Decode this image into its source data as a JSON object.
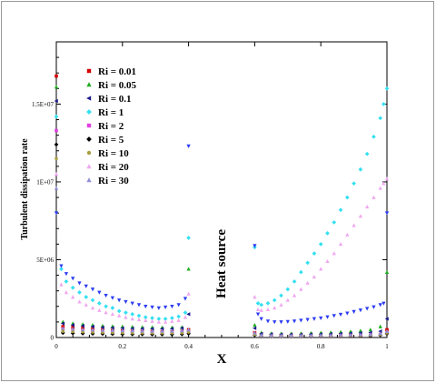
{
  "chart_data": {
    "type": "scatter",
    "title": "",
    "xlabel": "X",
    "ylabel": "Turbulent dissipation rate",
    "xlim": [
      0,
      1
    ],
    "ylim": [
      0,
      19000000
    ],
    "xticks": [
      0,
      0.2,
      0.4,
      0.6,
      0.8,
      1
    ],
    "xtick_labels": [
      "0",
      "0.2",
      "0.4",
      "0.6",
      "0.8",
      "1"
    ],
    "yticks": [
      0,
      5000000,
      10000000,
      15000000
    ],
    "ytick_labels": [
      "0",
      "5E+06",
      "1E+07",
      "1.5E+07"
    ],
    "annotation": "Heat source",
    "grid": false,
    "legend_position": "top-left",
    "series": [
      {
        "name": "Ri = 0.01",
        "color": "#d40000",
        "marker": "square",
        "x": [
          0.0,
          0.02,
          0.05,
          0.08,
          0.11,
          0.14,
          0.17,
          0.2,
          0.23,
          0.26,
          0.29,
          0.32,
          0.35,
          0.38,
          0.4,
          0.6,
          0.62,
          0.65,
          0.68,
          0.71,
          0.74,
          0.77,
          0.8,
          0.83,
          0.86,
          0.89,
          0.92,
          0.95,
          0.98,
          1.0
        ],
        "y": [
          16800000,
          700000,
          650000,
          600000,
          550000,
          500000,
          450000,
          430000,
          410000,
          400000,
          390000,
          380000,
          380000,
          400000,
          500000,
          300000,
          150000,
          130000,
          120000,
          110000,
          100000,
          100000,
          100000,
          100000,
          110000,
          120000,
          130000,
          150000,
          200000,
          500000
        ]
      },
      {
        "name": "Ri = 0.05",
        "color": "#1fae1f",
        "marker": "triangle-up",
        "x": [
          0.0,
          0.02,
          0.05,
          0.08,
          0.11,
          0.14,
          0.17,
          0.2,
          0.23,
          0.26,
          0.29,
          0.32,
          0.35,
          0.38,
          0.4,
          0.6,
          0.62,
          0.65,
          0.68,
          0.71,
          0.74,
          0.77,
          0.8,
          0.83,
          0.86,
          0.89,
          0.92,
          0.95,
          0.98,
          1.0
        ],
        "y": [
          16100000,
          1000000,
          900000,
          850000,
          800000,
          750000,
          720000,
          700000,
          680000,
          660000,
          650000,
          640000,
          640000,
          660000,
          4400000,
          800000,
          300000,
          260000,
          250000,
          250000,
          260000,
          280000,
          300000,
          320000,
          350000,
          380000,
          430000,
          500000,
          700000,
          4200000
        ]
      },
      {
        "name": "Ri = 0.1",
        "color": "#1a1a8c",
        "marker": "triangle-left",
        "x": [
          0.0,
          0.02,
          0.05,
          0.08,
          0.11,
          0.14,
          0.17,
          0.2,
          0.23,
          0.26,
          0.29,
          0.32,
          0.35,
          0.38,
          0.4,
          0.6,
          0.62,
          0.65,
          0.68,
          0.71,
          0.74,
          0.77,
          0.8,
          0.83,
          0.86,
          0.89,
          0.92,
          0.95,
          0.98,
          1.0
        ],
        "y": [
          15200000,
          900000,
          800000,
          750000,
          700000,
          650000,
          620000,
          600000,
          580000,
          570000,
          560000,
          560000,
          570000,
          600000,
          1500000,
          600000,
          250000,
          220000,
          200000,
          200000,
          200000,
          210000,
          220000,
          230000,
          250000,
          270000,
          290000,
          320000,
          400000,
          1200000
        ]
      },
      {
        "name": "Ri = 1",
        "color": "#33e0f0",
        "marker": "diamond",
        "x": [
          0.0,
          0.015,
          0.03,
          0.05,
          0.07,
          0.09,
          0.11,
          0.13,
          0.15,
          0.17,
          0.19,
          0.21,
          0.23,
          0.25,
          0.27,
          0.29,
          0.31,
          0.33,
          0.35,
          0.37,
          0.39,
          0.4,
          0.6,
          0.61,
          0.62,
          0.64,
          0.66,
          0.68,
          0.7,
          0.72,
          0.74,
          0.76,
          0.78,
          0.8,
          0.82,
          0.84,
          0.86,
          0.88,
          0.9,
          0.92,
          0.94,
          0.96,
          0.98,
          0.99,
          1.0
        ],
        "y": [
          14200000,
          4400000,
          3600000,
          3200000,
          2900000,
          2600000,
          2400000,
          2200000,
          2000000,
          1900000,
          1700000,
          1600000,
          1500000,
          1400000,
          1300000,
          1250000,
          1200000,
          1200000,
          1250000,
          1350000,
          1600000,
          6400000,
          5800000,
          2200000,
          2100000,
          2200000,
          2400000,
          2700000,
          3100000,
          3600000,
          4200000,
          4800000,
          5400000,
          6000000,
          6700000,
          7400000,
          8200000,
          9000000,
          9900000,
          10800000,
          11800000,
          12900000,
          14100000,
          15000000,
          16000000
        ]
      },
      {
        "name": "Ri = 2",
        "color": "#e040e0",
        "marker": "square",
        "x": [
          0.0,
          0.02,
          0.05,
          0.08,
          0.11,
          0.14,
          0.17,
          0.2,
          0.23,
          0.26,
          0.29,
          0.32,
          0.35,
          0.38,
          0.4,
          0.6,
          0.62,
          0.65,
          0.68,
          0.71,
          0.74,
          0.77,
          0.8,
          0.83,
          0.86,
          0.89,
          0.92,
          0.95,
          0.98,
          1.0
        ],
        "y": [
          13300000,
          500000,
          450000,
          420000,
          400000,
          380000,
          360000,
          350000,
          340000,
          330000,
          320000,
          320000,
          320000,
          340000,
          400000,
          200000,
          100000,
          90000,
          85000,
          85000,
          85000,
          90000,
          95000,
          100000,
          110000,
          120000,
          130000,
          150000,
          200000,
          300000
        ]
      },
      {
        "name": "Ri = 5",
        "color": "#000000",
        "marker": "diamond",
        "x": [
          0.0,
          0.02,
          0.05,
          0.08,
          0.11,
          0.14,
          0.17,
          0.2,
          0.23,
          0.26,
          0.29,
          0.32,
          0.35,
          0.38,
          0.4,
          0.6,
          0.62,
          0.65,
          0.68,
          0.71,
          0.74,
          0.77,
          0.8,
          0.83,
          0.86,
          0.89,
          0.92,
          0.95,
          0.98,
          1.0
        ],
        "y": [
          12400000,
          300000,
          280000,
          260000,
          250000,
          240000,
          230000,
          220000,
          210000,
          210000,
          200000,
          200000,
          200000,
          210000,
          250000,
          150000,
          80000,
          70000,
          65000,
          65000,
          65000,
          70000,
          75000,
          80000,
          85000,
          90000,
          100000,
          110000,
          150000,
          250000
        ]
      },
      {
        "name": "Ri = 10",
        "color": "#a8a040",
        "marker": "circle",
        "x": [
          0.0,
          0.02,
          0.05,
          0.08,
          0.11,
          0.14,
          0.17,
          0.2,
          0.23,
          0.26,
          0.29,
          0.32,
          0.35,
          0.38,
          0.4,
          0.6,
          0.62,
          0.65,
          0.68,
          0.71,
          0.74,
          0.77,
          0.8,
          0.83,
          0.86,
          0.89,
          0.92,
          0.95,
          0.98,
          1.0
        ],
        "y": [
          11500000,
          400000,
          380000,
          360000,
          340000,
          330000,
          320000,
          310000,
          300000,
          300000,
          290000,
          290000,
          290000,
          300000,
          350000,
          200000,
          100000,
          90000,
          85000,
          85000,
          90000,
          95000,
          100000,
          105000,
          110000,
          120000,
          130000,
          150000,
          200000,
          300000
        ]
      },
      {
        "name": "Ri = 20",
        "color": "#f0a8f0",
        "marker": "triangle-up",
        "x": [
          0.0,
          0.015,
          0.03,
          0.05,
          0.07,
          0.09,
          0.11,
          0.13,
          0.15,
          0.17,
          0.19,
          0.21,
          0.23,
          0.25,
          0.27,
          0.29,
          0.31,
          0.33,
          0.35,
          0.37,
          0.39,
          0.4,
          0.6,
          0.61,
          0.62,
          0.64,
          0.66,
          0.68,
          0.7,
          0.72,
          0.74,
          0.76,
          0.78,
          0.8,
          0.82,
          0.84,
          0.86,
          0.88,
          0.9,
          0.92,
          0.94,
          0.96,
          0.98,
          0.99,
          1.0
        ],
        "y": [
          10500000,
          3400000,
          2900000,
          2600000,
          2300000,
          2100000,
          1900000,
          1750000,
          1600000,
          1500000,
          1400000,
          1300000,
          1200000,
          1150000,
          1100000,
          1050000,
          1000000,
          1000000,
          1050000,
          1100000,
          1300000,
          2800000,
          2600000,
          1800000,
          1750000,
          1800000,
          1900000,
          2100000,
          2400000,
          2700000,
          3100000,
          3500000,
          3900000,
          4400000,
          4900000,
          5400000,
          6000000,
          6600000,
          7200000,
          7800000,
          8400000,
          9000000,
          9600000,
          9900000,
          10200000
        ]
      },
      {
        "name": "Ri = 30",
        "color": "#9090d8",
        "marker": "triangle-up",
        "x": [
          0.0,
          0.02,
          0.05,
          0.08,
          0.11,
          0.14,
          0.17,
          0.2,
          0.23,
          0.26,
          0.29,
          0.32,
          0.35,
          0.38,
          0.4,
          0.6,
          0.62,
          0.65,
          0.68,
          0.71,
          0.74,
          0.77,
          0.8,
          0.83,
          0.86,
          0.89,
          0.92,
          0.95,
          0.98,
          1.0
        ],
        "y": [
          9600000,
          600000,
          550000,
          520000,
          500000,
          480000,
          460000,
          450000,
          440000,
          430000,
          420000,
          420000,
          420000,
          440000,
          500000,
          300000,
          150000,
          130000,
          125000,
          125000,
          130000,
          135000,
          140000,
          150000,
          160000,
          170000,
          185000,
          200000,
          260000,
          400000
        ]
      },
      {
        "name": "",
        "color": "#2c3cf0",
        "marker": "triangle-down",
        "x": [
          0.0,
          0.015,
          0.03,
          0.05,
          0.07,
          0.09,
          0.11,
          0.13,
          0.15,
          0.17,
          0.19,
          0.21,
          0.23,
          0.25,
          0.27,
          0.29,
          0.31,
          0.33,
          0.35,
          0.37,
          0.39,
          0.4,
          0.6,
          0.61,
          0.62,
          0.64,
          0.66,
          0.68,
          0.7,
          0.72,
          0.74,
          0.76,
          0.78,
          0.8,
          0.82,
          0.84,
          0.86,
          0.88,
          0.9,
          0.92,
          0.94,
          0.96,
          0.98,
          0.99,
          1.0
        ],
        "y": [
          8000000,
          4600000,
          4100000,
          3800000,
          3500000,
          3300000,
          3100000,
          2900000,
          2700000,
          2550000,
          2400000,
          2300000,
          2200000,
          2100000,
          2000000,
          1950000,
          1900000,
          1950000,
          2000000,
          2100000,
          2500000,
          12300000,
          5900000,
          1500000,
          1200000,
          1050000,
          1000000,
          1000000,
          1020000,
          1050000,
          1100000,
          1150000,
          1200000,
          1250000,
          1320000,
          1400000,
          1480000,
          1560000,
          1660000,
          1760000,
          1860000,
          1960000,
          2100000,
          2200000,
          8000000
        ]
      }
    ]
  }
}
